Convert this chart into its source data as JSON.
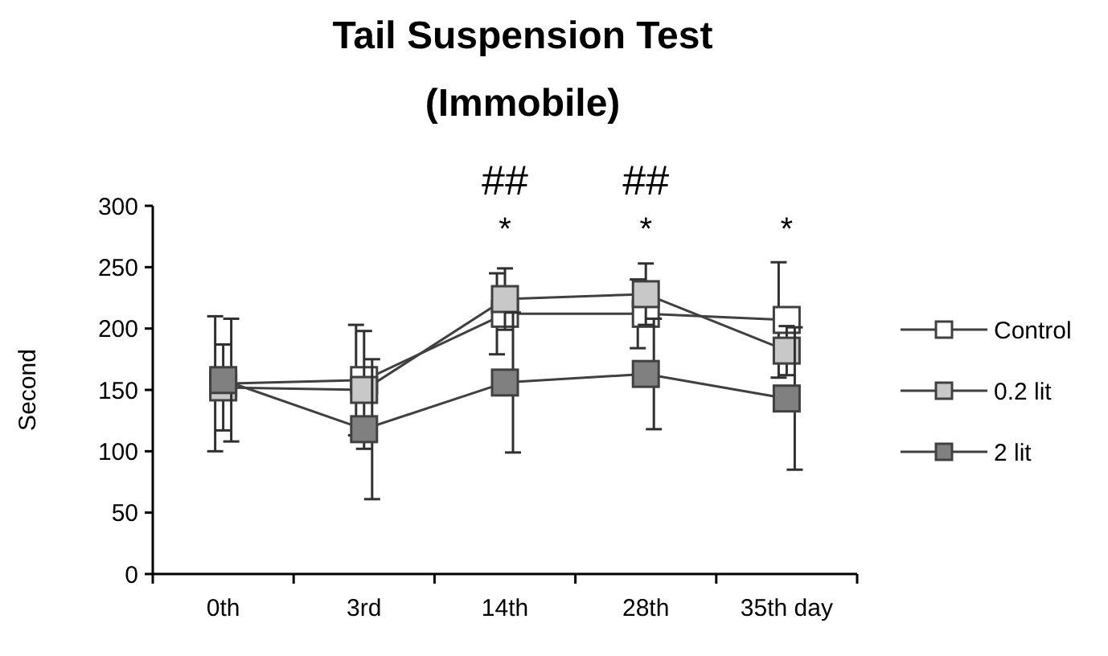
{
  "chart_data": {
    "type": "line",
    "title": "Tail Suspension Test\n(Immobile)",
    "ylabel": "Second",
    "categories": [
      "0th",
      "3rd",
      "14th",
      "28th",
      "35th day"
    ],
    "series": [
      {
        "name": "Control",
        "color": "#ffffff",
        "values": [
          155,
          158,
          212,
          212,
          207
        ],
        "errors": [
          55,
          45,
          33,
          28,
          47
        ]
      },
      {
        "name": "0.2 lit",
        "color": "#c8c8c8",
        "values": [
          152,
          150,
          224,
          228,
          182
        ],
        "errors": [
          35,
          48,
          25,
          25,
          20
        ]
      },
      {
        "name": "2 lit",
        "color": "#808080",
        "values": [
          158,
          118,
          156,
          163,
          143
        ],
        "errors": [
          50,
          57,
          57,
          45,
          58
        ]
      }
    ],
    "ylim": [
      0,
      300
    ],
    "yticks": [
      0,
      50,
      100,
      150,
      200,
      250,
      300
    ],
    "grid": false,
    "legend": "right",
    "marker": "square",
    "line_style": "solid",
    "annotations": [
      "##",
      "##",
      "*",
      "*",
      "*"
    ]
  }
}
